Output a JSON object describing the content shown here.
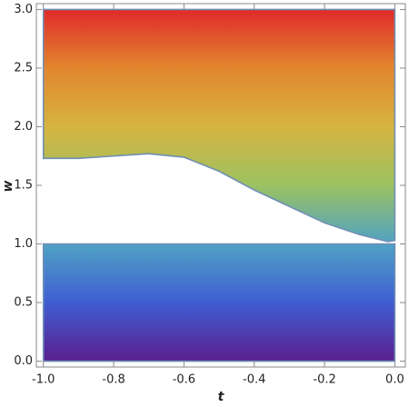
{
  "chart_data": {
    "type": "region",
    "xlabel": "t",
    "ylabel": "w",
    "xlim": [
      -1.02,
      0.03
    ],
    "ylim": [
      -0.05,
      3.05
    ],
    "xticks": [
      {
        "value": -1,
        "label": "-1.0"
      },
      {
        "value": -0.8,
        "label": "-0.8"
      },
      {
        "value": -0.6,
        "label": "-0.6"
      },
      {
        "value": -0.4,
        "label": "-0.4"
      },
      {
        "value": -0.2,
        "label": "-0.2"
      },
      {
        "value": 0,
        "label": "0.0"
      }
    ],
    "yticks": [
      {
        "value": 0,
        "label": "0.0"
      },
      {
        "value": 0.5,
        "label": "0.5"
      },
      {
        "value": 1,
        "label": "1.0"
      },
      {
        "value": 1.5,
        "label": "1.5"
      },
      {
        "value": 2,
        "label": "2.0"
      },
      {
        "value": 2.5,
        "label": "2.5"
      },
      {
        "value": 3,
        "label": "3.0"
      }
    ],
    "regions": [
      {
        "x": [
          -1,
          -0.9,
          -0.8,
          -0.7,
          -0.6,
          -0.5,
          -0.4,
          -0.3,
          -0.2,
          -0.1,
          -0.02,
          0
        ],
        "lower": [
          1.73,
          1.73,
          1.75,
          1.77,
          1.74,
          1.62,
          1.46,
          1.32,
          1.18,
          1.08,
          1.02,
          1.03
        ],
        "upper": [
          3,
          3,
          3,
          3,
          3,
          3,
          3,
          3,
          3,
          3,
          3,
          3
        ]
      },
      {
        "x": [
          -1,
          0
        ],
        "lower": [
          0,
          0
        ],
        "upper": [
          1,
          1
        ]
      }
    ],
    "edge_color": "#6f8fb4",
    "colormap": [
      {
        "value": 0,
        "color": "#5b1f8e"
      },
      {
        "value": 0.5,
        "color": "#3f5dd2"
      },
      {
        "value": 1,
        "color": "#4fa2c4"
      },
      {
        "value": 1.5,
        "color": "#9cc262"
      },
      {
        "value": 2,
        "color": "#d6b440"
      },
      {
        "value": 2.5,
        "color": "#e2862e"
      },
      {
        "value": 3,
        "color": "#e02a2a"
      }
    ]
  }
}
